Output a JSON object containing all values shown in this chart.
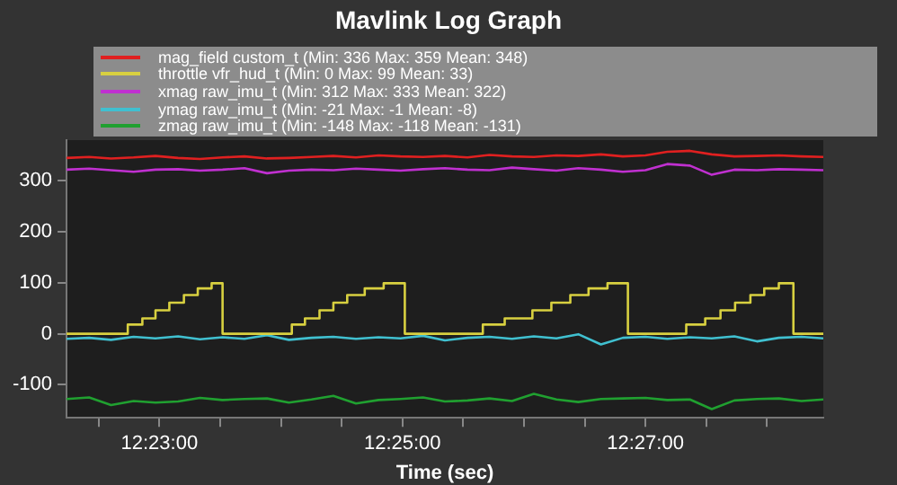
{
  "chart_data": {
    "type": "line",
    "title": "Mavlink Log Graph",
    "xlabel": "Time (sec)",
    "x": [
      12.3706,
      12.3737,
      12.3767,
      12.3798,
      12.3828,
      12.3859,
      12.3889,
      12.392,
      12.395,
      12.3981,
      12.4011,
      12.4042,
      12.4072,
      12.4103,
      12.4134,
      12.4164,
      12.4195,
      12.4225,
      12.4256,
      12.4286,
      12.4317,
      12.4347,
      12.4378,
      12.4408,
      12.4439,
      12.4469,
      12.45,
      12.453,
      12.4561,
      12.4591,
      12.4622,
      12.4653,
      12.4683,
      12.4714,
      12.4744
    ],
    "series": [
      {
        "name": "mag_field custom_t (Min: 336 Max: 359 Mean: 348)",
        "color": "#e02020",
        "values": [
          345,
          347,
          344,
          346,
          349,
          345,
          343,
          346,
          348,
          344,
          345,
          347,
          349,
          346,
          350,
          348,
          347,
          349,
          346,
          351,
          348,
          347,
          350,
          349,
          352,
          348,
          350,
          357,
          359,
          352,
          348,
          349,
          350,
          348,
          347
        ]
      },
      {
        "name": "throttle vfr_hud_t (Min: 0 Max: 99 Mean: 33)",
        "type": "step",
        "color": "#d8d040",
        "x": [
          12.3706,
          12.379,
          12.381,
          12.3828,
          12.3847,
          12.3867,
          12.3886,
          12.3905,
          12.392,
          12.4015,
          12.4033,
          12.4053,
          12.4072,
          12.4091,
          12.4115,
          12.4141,
          12.417,
          12.4277,
          12.4307,
          12.4345,
          12.4371,
          12.4397,
          12.4422,
          12.4448,
          12.4476,
          12.4556,
          12.4582,
          12.4603,
          12.4623,
          12.4644,
          12.4663,
          12.4683,
          12.4703,
          12.4744
        ],
        "values": [
          0,
          18,
          30,
          46,
          61,
          76,
          89,
          99,
          0,
          18,
          30,
          46,
          61,
          76,
          89,
          99,
          0,
          18,
          30,
          46,
          61,
          76,
          89,
          99,
          0,
          18,
          30,
          46,
          61,
          76,
          89,
          99,
          0,
          0
        ]
      },
      {
        "name": "xmag raw_imu_t (Min: 312 Max: 333 Mean: 322)",
        "color": "#c030d0",
        "values": [
          322,
          324,
          321,
          318,
          322,
          323,
          320,
          322,
          325,
          315,
          320,
          322,
          321,
          324,
          322,
          320,
          323,
          325,
          322,
          321,
          326,
          323,
          320,
          325,
          322,
          318,
          321,
          333,
          330,
          312,
          322,
          321,
          323,
          322,
          321
        ]
      },
      {
        "name": "ymag raw_imu_t (Min: -21 Max: -1 Mean: -8)",
        "color": "#40c0d0",
        "values": [
          -10,
          -8,
          -12,
          -6,
          -9,
          -5,
          -11,
          -7,
          -10,
          -3,
          -12,
          -8,
          -6,
          -10,
          -7,
          -9,
          -4,
          -13,
          -8,
          -6,
          -10,
          -5,
          -9,
          -1,
          -21,
          -8,
          -6,
          -10,
          -7,
          -9,
          -5,
          -15,
          -8,
          -6,
          -9
        ]
      },
      {
        "name": "zmag raw_imu_t (Min: -148 Max: -118 Mean: -131)",
        "color": "#20a030",
        "values": [
          -128,
          -125,
          -140,
          -132,
          -135,
          -133,
          -126,
          -130,
          -128,
          -127,
          -135,
          -129,
          -122,
          -137,
          -130,
          -128,
          -125,
          -133,
          -131,
          -127,
          -132,
          -118,
          -129,
          -134,
          -128,
          -127,
          -126,
          -130,
          -129,
          -148,
          -131,
          -128,
          -127,
          -132,
          -129
        ]
      }
    ],
    "xlim": [
      12.3706,
      12.4744
    ],
    "xticks": [
      {
        "value": 12.375,
        "label": null
      },
      {
        "value": 12.38333,
        "label": "12:23:00"
      },
      {
        "value": 12.39167,
        "label": null
      },
      {
        "value": 12.4,
        "label": null
      },
      {
        "value": 12.40833,
        "label": null
      },
      {
        "value": 12.41667,
        "label": "12:25:00"
      },
      {
        "value": 12.425,
        "label": null
      },
      {
        "value": 12.43333,
        "label": null
      },
      {
        "value": 12.44167,
        "label": null
      },
      {
        "value": 12.45,
        "label": "12:27:00"
      },
      {
        "value": 12.45833,
        "label": null
      },
      {
        "value": 12.46667,
        "label": null
      }
    ],
    "ylim": [
      -165,
      380
    ],
    "yticks": [
      -100,
      0,
      100,
      200,
      300
    ],
    "grid": false,
    "legend": "top",
    "marker": "none",
    "line_style": "solid"
  }
}
